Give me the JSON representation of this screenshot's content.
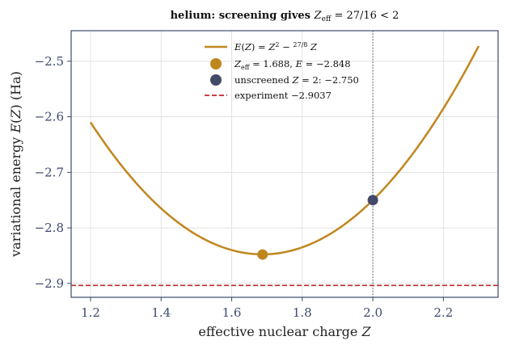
{
  "chart_data": {
    "type": "line",
    "title": "helium: screening gives Z_eff = 27/16 < 2",
    "xlabel": "effective nuclear charge Z",
    "ylabel": "variational energy E(Z) (Ha)",
    "xlim": [
      1.145,
      2.355
    ],
    "ylim": [
      -2.925,
      -2.445
    ],
    "xticks": [
      1.2,
      1.4,
      1.6,
      1.8,
      2.0,
      2.2
    ],
    "xtick_labels": [
      "1.2",
      "1.4",
      "1.6",
      "1.8",
      "2.0",
      "2.2"
    ],
    "yticks": [
      -2.5,
      -2.6,
      -2.7,
      -2.8,
      -2.9
    ],
    "ytick_labels": [
      "−2.5",
      "−2.6",
      "−2.7",
      "−2.8",
      "−2.9"
    ],
    "grid": true,
    "legend_position": "top-center",
    "curve": {
      "name": "E(Z) = Z² − (27/8) Z",
      "x_range": [
        1.2,
        2.3
      ],
      "coefficients": {
        "a": 1,
        "b": -3.375
      },
      "color": "#c0861e"
    },
    "points": [
      {
        "name": "Z_eff = 1.688, E = −2.848",
        "x": 1.6875,
        "y": -2.848,
        "color": "#c0861e"
      },
      {
        "name": "unscreened Z = 2: −2.750",
        "x": 2.0,
        "y": -2.75,
        "color": "#434a68"
      }
    ],
    "reference_lines": [
      {
        "name": "experiment −2.9037",
        "orientation": "horizontal",
        "value": -2.9037,
        "style": "dashed",
        "color": "#c0282d"
      },
      {
        "orientation": "vertical",
        "value": 2.0,
        "style": "dotted",
        "color": "#555555"
      }
    ]
  },
  "colors": {
    "axes": "#3d4a6b",
    "grid": "#dddddd",
    "curve": "#c0861e",
    "minimum_marker": "#c0861e",
    "unscreened_marker": "#434a68",
    "experiment_line": "#c0282d"
  }
}
